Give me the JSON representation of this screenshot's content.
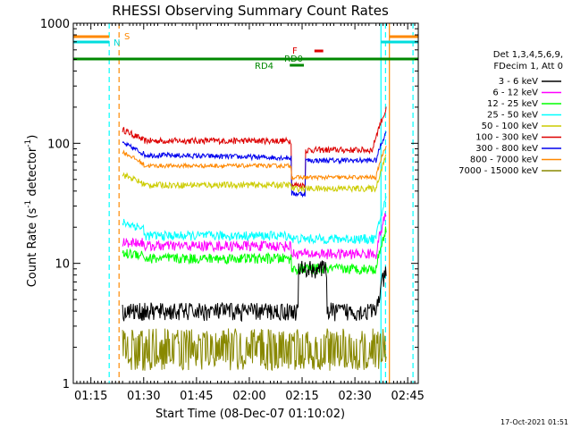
{
  "chart_data": {
    "type": "line",
    "title": "RHESSI Observing Summary Count Rates",
    "xlabel": "Start Time (08-Dec-07 01:10:02)",
    "ylabel_main": "Count Rate (s",
    "ylabel_sup1": "-1",
    "ylabel_mid": " detector",
    "ylabel_sup2": "-1",
    "ylabel_end": ")",
    "y_scale": "log",
    "ylim": [
      1,
      1000
    ],
    "y_ticks": [
      {
        "value": 1,
        "label": "1"
      },
      {
        "value": 10,
        "label": "10"
      },
      {
        "value": 100,
        "label": "100"
      },
      {
        "value": 1000,
        "label": "1000"
      }
    ],
    "x_range_min": [
      0,
      98
    ],
    "x_ticks": [
      {
        "min": 5,
        "label": "01:15"
      },
      {
        "min": 20,
        "label": "01:30"
      },
      {
        "min": 35,
        "label": "01:45"
      },
      {
        "min": 50,
        "label": "02:00"
      },
      {
        "min": 65,
        "label": "02:15"
      },
      {
        "min": 80,
        "label": "02:30"
      },
      {
        "min": 95,
        "label": "02:45"
      }
    ],
    "legend_header": [
      "Det 1,3,4,5,6,9,",
      "FDecim 1, Att 0"
    ],
    "series": [
      {
        "name": "3 - 6 keV",
        "color": "#000000"
      },
      {
        "name": "6 - 12 keV",
        "color": "#ff00ff"
      },
      {
        "name": "12 - 25 keV",
        "color": "#00ff00"
      },
      {
        "name": "25 - 50 keV",
        "color": "#00ffff"
      },
      {
        "name": "50 - 100 keV",
        "color": "#cccc00"
      },
      {
        "name": "100 - 300 keV",
        "color": "#dd0000"
      },
      {
        "name": "300 - 800 keV",
        "color": "#0000ee"
      },
      {
        "name": "800 - 7000 keV",
        "color": "#ff8800"
      },
      {
        "name": "7000 - 15000 keV",
        "color": "#888800"
      }
    ],
    "flags": [
      {
        "label": "S",
        "color": "#ff8800"
      },
      {
        "label": "N",
        "color": "#00dddd"
      },
      {
        "label": "F",
        "color": "#dd0000"
      },
      {
        "label": "RD0",
        "color": "#008800"
      },
      {
        "label": "RD4",
        "color": "#008800"
      }
    ],
    "timestamp": "17-Oct-2021 01:51"
  }
}
